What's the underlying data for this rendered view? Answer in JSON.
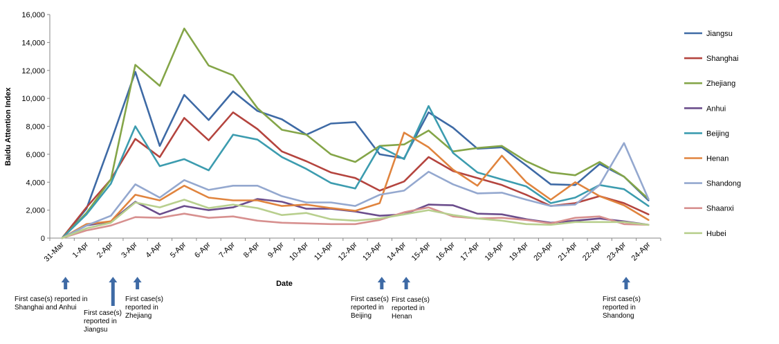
{
  "chart_data": {
    "type": "line",
    "title": "",
    "xlabel": "Date",
    "ylabel": "Baidu Attention Index",
    "ylim": [
      0,
      16000
    ],
    "ytick_labels": [
      "0",
      "2,000",
      "4,000",
      "6,000",
      "8,000",
      "10,000",
      "12,000",
      "14,000",
      "16,000"
    ],
    "grid": false,
    "legend_position": "right",
    "categories": [
      "31-Mar",
      "1-Apr",
      "2-Apr",
      "3-Apr",
      "4-Apr",
      "5-Apr",
      "6-Apr",
      "7-Apr",
      "8-Apr",
      "9-Apr",
      "10-Apr",
      "11-Apr",
      "12-Apr",
      "13-Apr",
      "14-Apr",
      "15-Apr",
      "16-Apr",
      "17-Apr",
      "18-Apr",
      "19-Apr",
      "20-Apr",
      "21-Apr",
      "22-Apr",
      "23-Apr",
      "24-Apr"
    ],
    "series": [
      {
        "name": "Jiangsu",
        "color": "#3e6aa5",
        "values": [
          0,
          2100,
          6900,
          11900,
          6600,
          10250,
          8450,
          10500,
          9100,
          8500,
          7400,
          8200,
          8300,
          6000,
          5700,
          9000,
          7900,
          6400,
          6500,
          5200,
          3850,
          3800,
          5300,
          4400,
          2700
        ]
      },
      {
        "name": "Shanghai",
        "color": "#b4443e",
        "values": [
          0,
          2200,
          4200,
          7100,
          5800,
          8600,
          7000,
          9000,
          7800,
          6200,
          5500,
          4700,
          4300,
          3400,
          4050,
          5800,
          4800,
          4300,
          3800,
          3100,
          2300,
          2500,
          3000,
          2500,
          1700
        ]
      },
      {
        "name": "Zhejiang",
        "color": "#84a548",
        "values": [
          0,
          1800,
          4200,
          12400,
          10900,
          15000,
          12350,
          11650,
          9300,
          7750,
          7400,
          6000,
          5450,
          6600,
          6700,
          7700,
          6200,
          6450,
          6600,
          5500,
          4700,
          4500,
          5450,
          4400,
          2800
        ]
      },
      {
        "name": "Anhui",
        "color": "#6b4d8c",
        "values": [
          0,
          900,
          1200,
          2600,
          1700,
          2300,
          2000,
          2200,
          2800,
          2600,
          2100,
          2100,
          1900,
          1600,
          1700,
          2400,
          2350,
          1750,
          1700,
          1350,
          1100,
          1250,
          1400,
          1200,
          950
        ]
      },
      {
        "name": "Beijing",
        "color": "#3c9caf",
        "values": [
          0,
          1700,
          3900,
          8000,
          5150,
          5650,
          4850,
          7400,
          7050,
          5800,
          4950,
          3950,
          3550,
          6550,
          5650,
          9450,
          6100,
          4700,
          4200,
          3700,
          2500,
          2900,
          3800,
          3500,
          2300
        ]
      },
      {
        "name": "Henan",
        "color": "#e0843e",
        "values": [
          0,
          1000,
          1200,
          3100,
          2700,
          3750,
          2900,
          2700,
          2700,
          2300,
          2400,
          2150,
          1950,
          2500,
          7550,
          6500,
          4900,
          3750,
          5900,
          4000,
          2750,
          4000,
          3000,
          2350,
          1300
        ]
      },
      {
        "name": "Shandong",
        "color": "#94a8cf",
        "values": [
          0,
          900,
          1600,
          3850,
          2900,
          4150,
          3450,
          3750,
          3750,
          3000,
          2550,
          2550,
          2300,
          3100,
          3400,
          4750,
          3850,
          3200,
          3250,
          2750,
          2300,
          2400,
          3800,
          6800,
          2800
        ]
      },
      {
        "name": "Shaanxi",
        "color": "#d7908f",
        "values": [
          0,
          550,
          900,
          1500,
          1450,
          1750,
          1450,
          1550,
          1250,
          1100,
          1050,
          1000,
          1000,
          1300,
          1850,
          2200,
          1550,
          1400,
          1450,
          1300,
          1050,
          1450,
          1550,
          1000,
          950
        ]
      },
      {
        "name": "Hubei",
        "color": "#b8cf8e",
        "values": [
          0,
          700,
          1100,
          2550,
          2200,
          2750,
          2150,
          2400,
          2150,
          1650,
          1800,
          1350,
          1250,
          1400,
          1700,
          2000,
          1650,
          1400,
          1250,
          1000,
          950,
          1150,
          1150,
          1150,
          950
        ]
      }
    ],
    "annotations": [
      {
        "category": "31-Mar",
        "text": "First case(s) reported in\nShanghai and Anhui"
      },
      {
        "category": "2-Apr",
        "text": "First case(s)\nreported in\nJiangsu"
      },
      {
        "category": "3-Apr",
        "text": "First case(s)\nreported in\nZhejiang"
      },
      {
        "category": "13-Apr",
        "text": "First case(s)\nreported in\nBeijing"
      },
      {
        "category": "14-Apr",
        "text": "First case(s)\nreported in\nHenan"
      },
      {
        "category": "23-Apr",
        "text": "First case(s)\nreported in\nShandong"
      }
    ],
    "arrow_color": "#3e6aa5"
  }
}
